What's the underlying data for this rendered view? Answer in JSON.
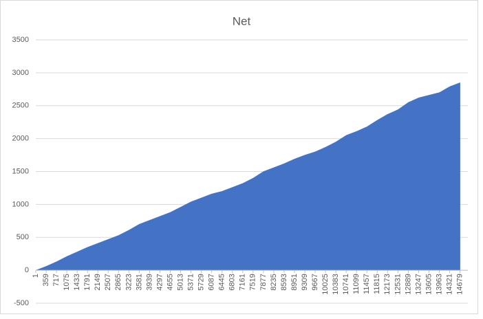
{
  "chart_data": {
    "type": "area",
    "title": "Net",
    "color": "#4472c4",
    "grid": true,
    "x": [
      1,
      359,
      717,
      1075,
      1433,
      1791,
      2149,
      2507,
      2865,
      3223,
      3581,
      3939,
      4297,
      4655,
      5013,
      5371,
      5729,
      6087,
      6445,
      6803,
      7161,
      7519,
      7877,
      8235,
      8593,
      8951,
      9309,
      9667,
      10025,
      10383,
      10741,
      11099,
      11457,
      11815,
      12173,
      12531,
      12889,
      13247,
      13605,
      13963,
      14321,
      14679
    ],
    "values": [
      0,
      60,
      130,
      210,
      280,
      350,
      410,
      470,
      530,
      610,
      700,
      760,
      820,
      880,
      960,
      1040,
      1100,
      1160,
      1200,
      1260,
      1320,
      1400,
      1500,
      1560,
      1620,
      1690,
      1750,
      1800,
      1870,
      1950,
      2050,
      2110,
      2180,
      2280,
      2370,
      2440,
      2550,
      2620,
      2660,
      2700,
      2790,
      2850
    ],
    "xlim": [
      1,
      14950
    ],
    "ylim": [
      -500,
      3500
    ],
    "yticks": [
      -500,
      0,
      500,
      1000,
      1500,
      2000,
      2500,
      3000,
      3500
    ]
  }
}
